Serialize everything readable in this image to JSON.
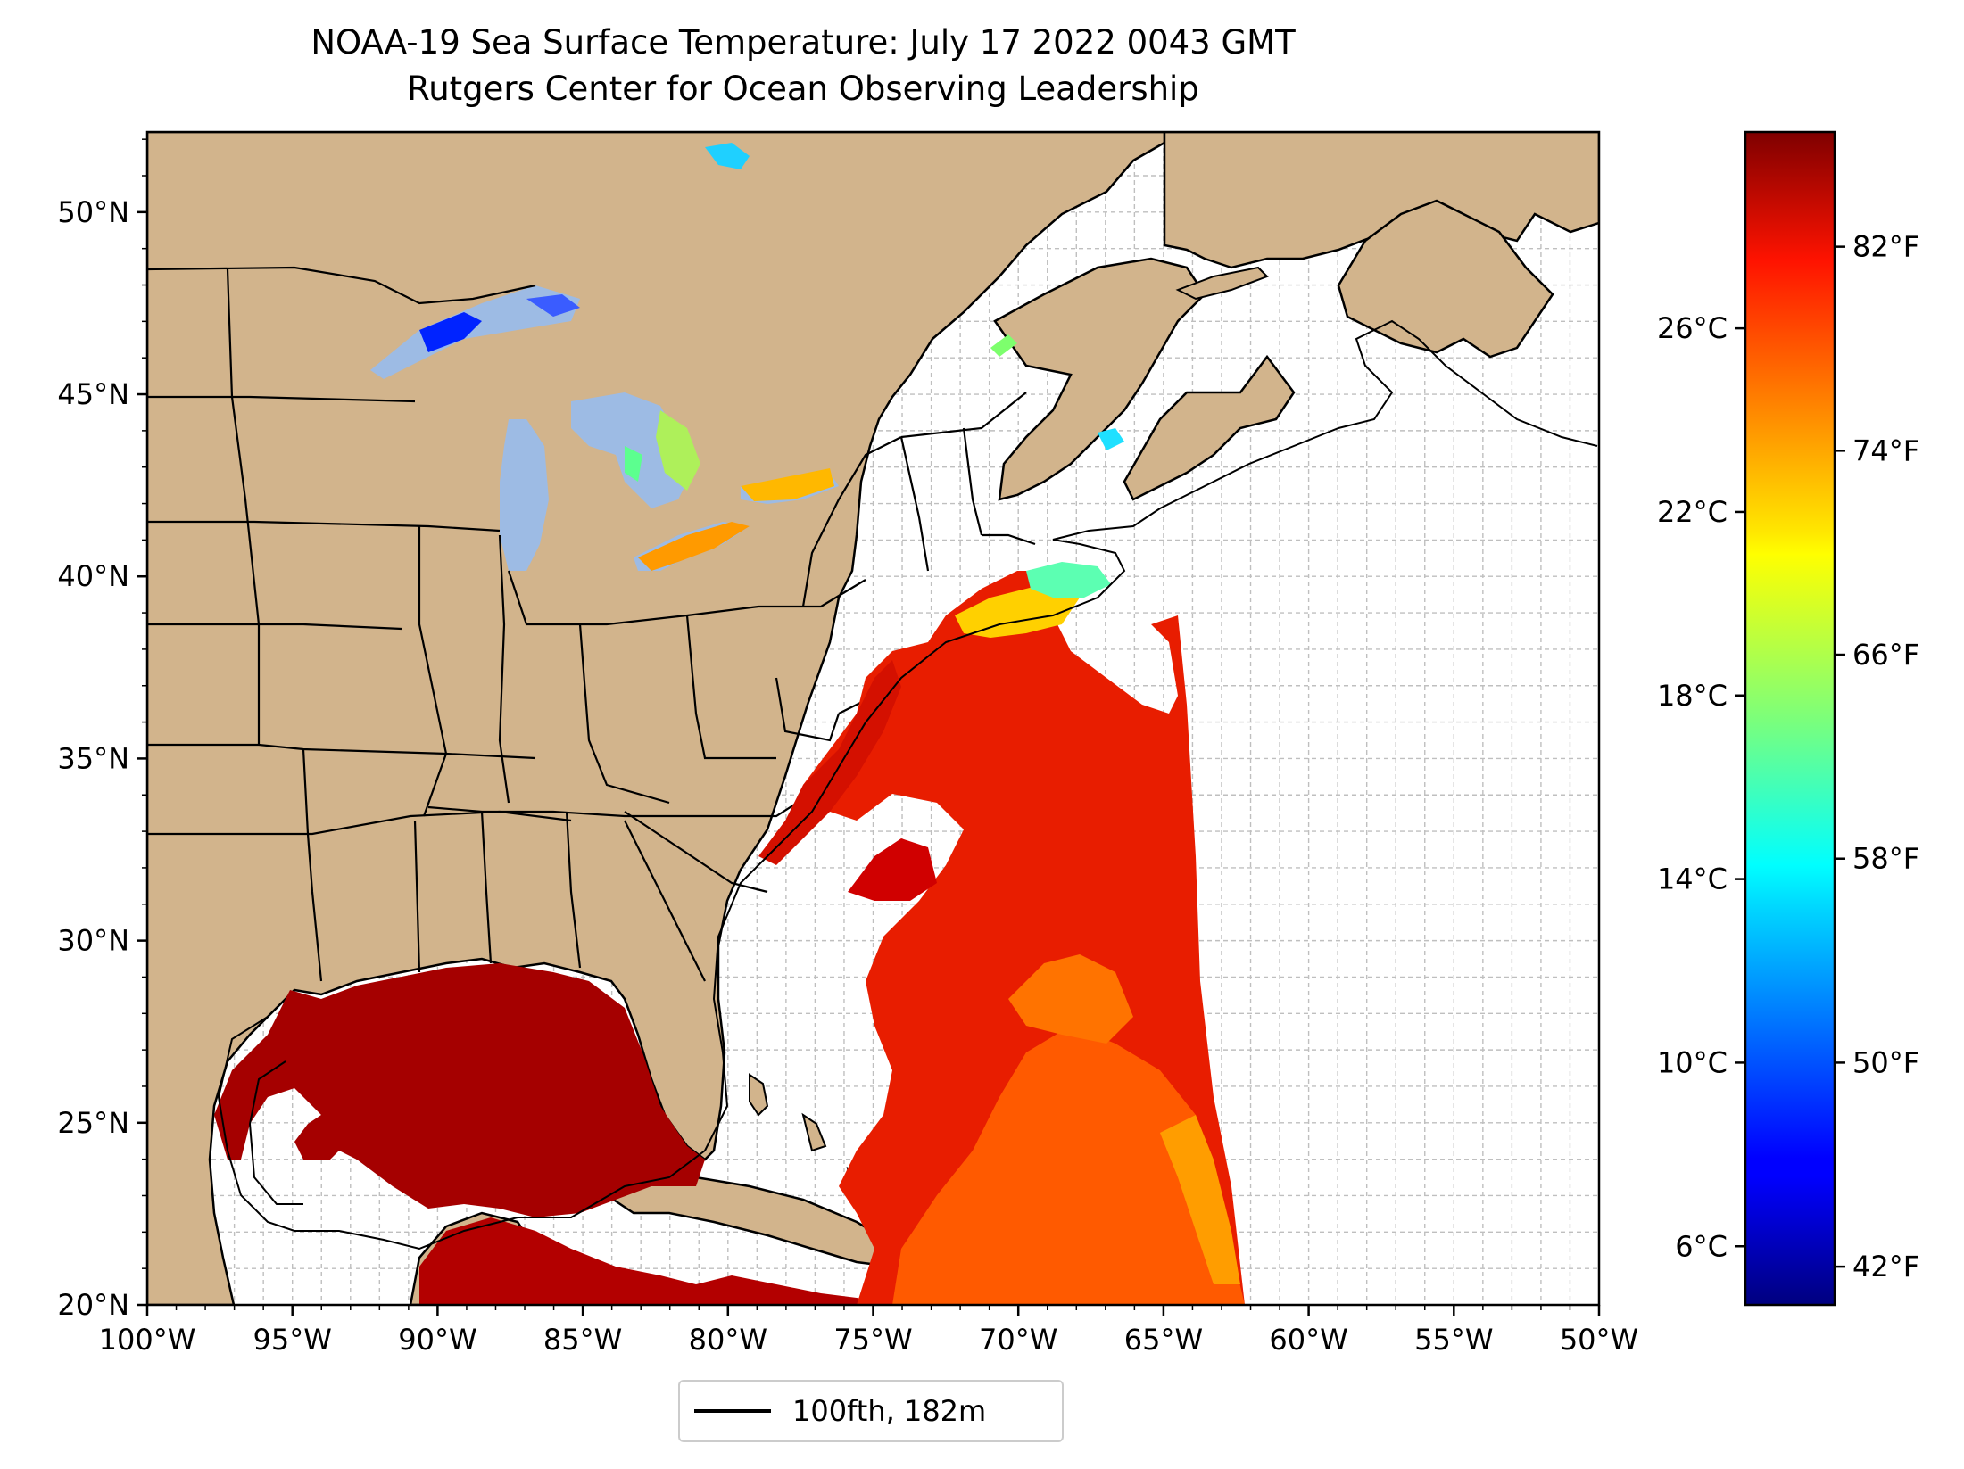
{
  "title": "NOAA-19 Sea Surface Temperature: July 17 2022 0043 GMT",
  "subtitle": "Rutgers Center for Ocean Observing Leadership",
  "map": {
    "lon_range": [
      -100,
      -50
    ],
    "lat_range": [
      20,
      52.2
    ],
    "lon_ticks": [
      -100,
      -95,
      -90,
      -85,
      -80,
      -75,
      -70,
      -65,
      -60,
      -55,
      -50
    ],
    "lon_tick_labels": [
      "100°W",
      "95°W",
      "90°W",
      "85°W",
      "80°W",
      "75°W",
      "70°W",
      "65°W",
      "60°W",
      "55°W",
      "50°W"
    ],
    "lat_ticks": [
      20,
      25,
      30,
      35,
      40,
      45,
      50
    ],
    "lat_tick_labels": [
      "20°N",
      "25°N",
      "30°N",
      "35°N",
      "40°N",
      "45°N",
      "50°N"
    ],
    "grid": "on (dashed, 1° spacing)",
    "land_color": "#d2b48c",
    "ocean_color": "#ffffff",
    "lake_color": "#9dbbe4",
    "boundary_color": "#000000"
  },
  "legend": {
    "label": "100fth, 182m",
    "placement": "bottom-center, below map"
  },
  "colorbar": {
    "colormap": "jet",
    "celsius_ticks": [
      6,
      10,
      14,
      18,
      22,
      26
    ],
    "celsius_labels": [
      "6°C",
      "10°C",
      "14°C",
      "18°C",
      "22°C",
      "26°C"
    ],
    "fahrenheit_ticks": [
      42,
      50,
      58,
      66,
      74,
      82
    ],
    "fahrenheit_labels": [
      "42°F",
      "50°F",
      "58°F",
      "66°F",
      "74°F",
      "82°F"
    ],
    "range_f": [
      40.5,
      86.5
    ]
  }
}
